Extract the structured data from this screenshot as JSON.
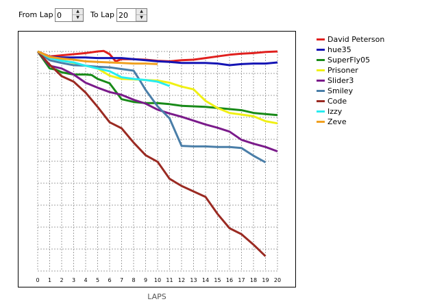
{
  "controls": {
    "from_label": "From Lap",
    "from_value": "0",
    "to_label": "To Lap",
    "to_value": "20"
  },
  "chart_data": {
    "type": "line",
    "xlabel": "LAPS",
    "ylabel": "",
    "title": "",
    "x_ticks": [
      0,
      1,
      2,
      3,
      4,
      5,
      6,
      7,
      8,
      9,
      10,
      11,
      12,
      13,
      14,
      15,
      16,
      17,
      18,
      19,
      20
    ],
    "xlim": [
      0,
      20
    ],
    "ylim": [
      0,
      20
    ],
    "y_axis_labels": "none",
    "grid": true,
    "legend_position": "right",
    "series": [
      {
        "name": "David Peterson",
        "color": "#e0201e",
        "x": [
          0,
          1,
          2,
          3,
          4,
          5,
          5.5,
          6,
          6.5,
          7,
          8,
          9,
          10,
          11,
          12,
          13,
          14,
          15,
          16,
          17,
          18,
          19,
          20
        ],
        "y": [
          0,
          0.45,
          0.35,
          0.25,
          0.15,
          0.0,
          -0.05,
          0.25,
          0.9,
          0.7,
          0.7,
          0.75,
          0.85,
          0.9,
          0.8,
          0.75,
          0.6,
          0.45,
          0.3,
          0.2,
          0.15,
          0.05,
          0.0
        ]
      },
      {
        "name": "hue35",
        "color": "#1414b4",
        "x": [
          0,
          1,
          2,
          3,
          4,
          5,
          6,
          7,
          8,
          9,
          10,
          11,
          12,
          13,
          14,
          15,
          16,
          17,
          18,
          19,
          20
        ],
        "y": [
          0,
          0.5,
          0.55,
          0.55,
          0.55,
          0.6,
          0.6,
          0.6,
          0.7,
          0.8,
          0.9,
          0.95,
          1.05,
          1.05,
          1.05,
          1.1,
          1.25,
          1.15,
          1.1,
          1.1,
          1.0
        ]
      },
      {
        "name": "SuperFly05",
        "color": "#188a18",
        "x": [
          0,
          1,
          1.5,
          2,
          3,
          4,
          4.5,
          5,
          6,
          7,
          8,
          9,
          10,
          11,
          12,
          13,
          14,
          15,
          16,
          17,
          18,
          19,
          20
        ],
        "y": [
          0,
          1.55,
          1.65,
          1.9,
          2.1,
          2.1,
          2.15,
          2.5,
          2.9,
          4.35,
          4.6,
          4.7,
          4.7,
          4.8,
          4.95,
          5.0,
          5.05,
          5.15,
          5.25,
          5.35,
          5.6,
          5.7,
          5.8
        ]
      },
      {
        "name": "Prisoner",
        "color": "#f0f014",
        "x": [
          0,
          1,
          2,
          3,
          4,
          5,
          6,
          7,
          8,
          9,
          10,
          11,
          12,
          13,
          14,
          15,
          16,
          17,
          18,
          19,
          20
        ],
        "y": [
          0,
          0.5,
          0.8,
          1.05,
          1.3,
          1.55,
          2.2,
          2.5,
          2.55,
          2.6,
          2.65,
          2.85,
          3.2,
          3.45,
          4.5,
          5.15,
          5.6,
          5.75,
          5.9,
          6.35,
          6.55
        ]
      },
      {
        "name": "Slider3",
        "color": "#7a1a8a",
        "x": [
          0,
          1,
          2,
          3,
          4,
          5,
          6,
          7,
          8,
          9,
          10,
          11,
          12,
          13,
          14,
          15,
          16,
          17,
          18,
          19,
          20
        ],
        "y": [
          0,
          1.3,
          1.55,
          2.1,
          2.85,
          3.3,
          3.7,
          3.95,
          4.4,
          4.75,
          5.3,
          5.65,
          5.95,
          6.3,
          6.65,
          6.95,
          7.3,
          8.05,
          8.4,
          8.7,
          9.1
        ]
      },
      {
        "name": "Smiley",
        "color": "#4a7ea8",
        "x": [
          0,
          1,
          2,
          3,
          4,
          5,
          6,
          7,
          8,
          8.5,
          9,
          10,
          11,
          12,
          13,
          14,
          15,
          16,
          17,
          18,
          19
        ],
        "y": [
          0,
          0.8,
          1.05,
          1.25,
          1.3,
          1.4,
          1.45,
          1.6,
          1.75,
          2.6,
          3.5,
          5.0,
          6.1,
          8.6,
          8.65,
          8.65,
          8.7,
          8.7,
          8.8,
          9.5,
          10.1
        ]
      },
      {
        "name": "Code",
        "color": "#9a2a22",
        "x": [
          0,
          1,
          2,
          3,
          4,
          5,
          6,
          7,
          8,
          9,
          10,
          11,
          12,
          13,
          14,
          15,
          16,
          17,
          18,
          19
        ],
        "y": [
          0,
          1.2,
          2.25,
          2.75,
          3.75,
          5.05,
          6.45,
          7.0,
          8.3,
          9.45,
          10.05,
          11.6,
          12.25,
          12.75,
          13.25,
          14.8,
          16.1,
          16.65,
          17.6,
          18.65
        ]
      },
      {
        "name": "Izzy",
        "color": "#28ecf0",
        "x": [
          0,
          1,
          2,
          3,
          4,
          5,
          6,
          7,
          8,
          9,
          10,
          11
        ],
        "y": [
          0,
          0.6,
          0.85,
          1.0,
          1.3,
          1.55,
          1.8,
          2.35,
          2.5,
          2.6,
          2.75,
          3.15
        ]
      },
      {
        "name": "Zeve",
        "color": "#f0a020",
        "x": [
          0,
          1,
          2,
          3,
          4,
          5,
          6,
          7,
          8,
          9,
          10
        ],
        "y": [
          0,
          0.5,
          0.65,
          0.75,
          0.9,
          0.95,
          1.0,
          1.05,
          1.1,
          1.1,
          1.15
        ]
      }
    ]
  }
}
